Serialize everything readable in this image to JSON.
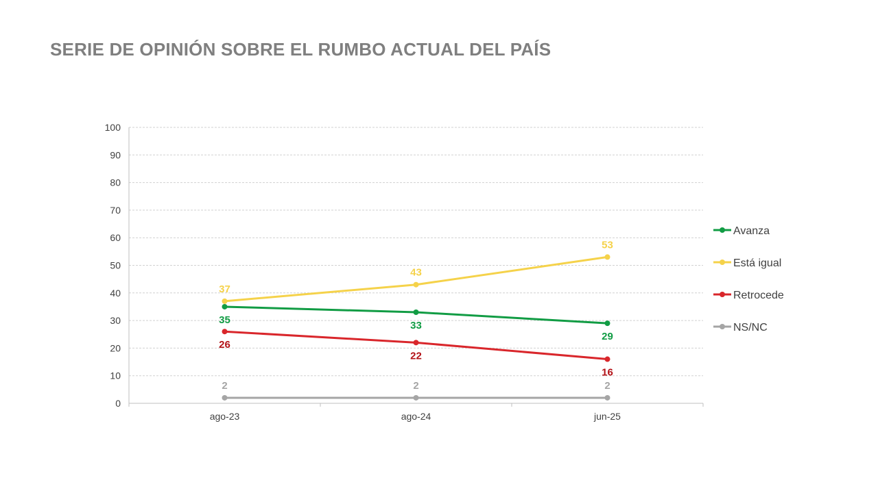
{
  "title": "SERIE DE OPINIÓN SOBRE EL RUMBO ACTUAL DEL PAÍS",
  "chart_data": {
    "type": "line",
    "categories": [
      "ago-23",
      "ago-24",
      "jun-25"
    ],
    "ylim": [
      0,
      100
    ],
    "yticks": [
      0,
      10,
      20,
      30,
      40,
      50,
      60,
      70,
      80,
      90,
      100
    ],
    "grid": true,
    "legend_position": "right",
    "series": [
      {
        "name": "Avanza",
        "values": [
          35,
          33,
          29
        ],
        "color": "#119c44",
        "label_color": "#119c44",
        "label_pos": [
          "below",
          "below",
          "below"
        ]
      },
      {
        "name": "Está igual",
        "values": [
          37,
          43,
          53
        ],
        "color": "#f5d24a",
        "label_color": "#f5d24a",
        "label_pos": [
          "above",
          "above",
          "above"
        ]
      },
      {
        "name": "Retrocede",
        "values": [
          26,
          22,
          16
        ],
        "color": "#d9262b",
        "label_color": "#b31217",
        "label_pos": [
          "below",
          "below",
          "below"
        ]
      },
      {
        "name": "NS/NC",
        "values": [
          2,
          2,
          2
        ],
        "color": "#a5a5a5",
        "label_color": "#a5a5a5",
        "label_pos": [
          "above",
          "above",
          "above"
        ]
      }
    ]
  }
}
